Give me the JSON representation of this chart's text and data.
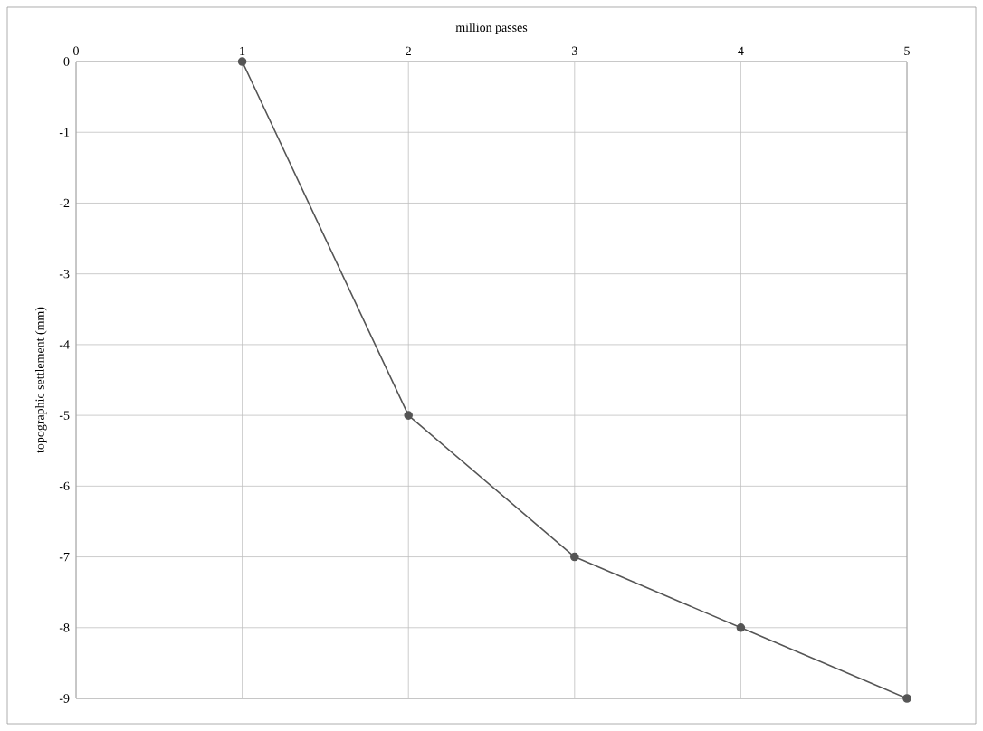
{
  "chart_data": {
    "type": "line",
    "xlabel": "million passes",
    "ylabel": "topographic settlement (mm)",
    "x": [
      1,
      2,
      3,
      4,
      5
    ],
    "series": [
      {
        "color": "#555555",
        "values": [
          0,
          -5,
          -7,
          -8,
          -9
        ]
      }
    ],
    "xlim": [
      0,
      5
    ],
    "xticks": [
      0,
      1,
      2,
      3,
      4,
      5
    ],
    "ylim": [
      -9,
      0
    ],
    "yticks": [
      -9,
      -8,
      -7,
      -6,
      -5,
      -4,
      -3,
      -2,
      -1,
      0
    ],
    "grid": true,
    "marker": "circle",
    "line_style": "solid"
  }
}
